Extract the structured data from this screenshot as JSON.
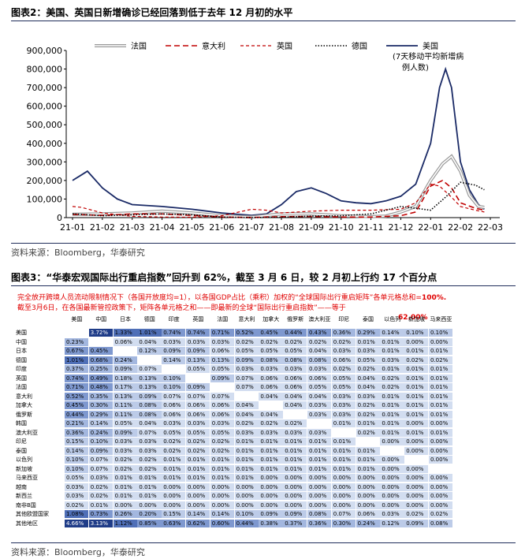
{
  "fig2": {
    "title": "图表2：美国、英国日新增确诊已经回落到低于去年 12 月初的水平",
    "source": "资料来源：Bloomberg，华泰研究"
  },
  "chart_data": {
    "type": "line",
    "yticks": [
      "900,000",
      "800,000",
      "700,000",
      "600,000",
      "500,000",
      "400,000",
      "300,000",
      "200,000",
      "100,000",
      "0"
    ],
    "xticks": [
      "21-01",
      "21-02",
      "21-03",
      "21-04",
      "21-05",
      "21-06",
      "21-07",
      "21-08",
      "21-09",
      "21-10",
      "21-11",
      "21-12",
      "22-01",
      "22-02",
      "22-03"
    ],
    "ylim": [
      0,
      900000
    ],
    "legend": [
      "法国",
      "意大利",
      "英国",
      "德国",
      "美国"
    ],
    "legend_note": [
      "(7天移动平均新增病",
      "例人数)"
    ],
    "series": [
      {
        "name": "美国",
        "color": "#1a2a66",
        "points": [
          [
            0,
            200000
          ],
          [
            0.3,
            230000
          ],
          [
            0.5,
            250000
          ],
          [
            1,
            160000
          ],
          [
            1.5,
            100000
          ],
          [
            2,
            70000
          ],
          [
            3,
            60000
          ],
          [
            4,
            45000
          ],
          [
            5,
            25000
          ],
          [
            6,
            12000
          ],
          [
            6.5,
            20000
          ],
          [
            7,
            70000
          ],
          [
            7.5,
            140000
          ],
          [
            8,
            160000
          ],
          [
            8.5,
            130000
          ],
          [
            9,
            90000
          ],
          [
            9.5,
            80000
          ],
          [
            10,
            75000
          ],
          [
            10.5,
            90000
          ],
          [
            11,
            115000
          ],
          [
            11.5,
            180000
          ],
          [
            12,
            400000
          ],
          [
            12.3,
            700000
          ],
          [
            12.5,
            800000
          ],
          [
            12.7,
            700000
          ],
          [
            13,
            300000
          ],
          [
            13.3,
            150000
          ],
          [
            13.6,
            70000
          ],
          [
            13.8,
            45000
          ]
        ]
      },
      {
        "name": "法国",
        "color": "#999999",
        "points": [
          [
            0,
            18000
          ],
          [
            1,
            20000
          ],
          [
            2,
            25000
          ],
          [
            3,
            35000
          ],
          [
            4,
            25000
          ],
          [
            5,
            10000
          ],
          [
            6,
            3000
          ],
          [
            7,
            20000
          ],
          [
            8,
            20000
          ],
          [
            9,
            10000
          ],
          [
            10,
            5000
          ],
          [
            10.5,
            8000
          ],
          [
            11,
            30000
          ],
          [
            11.5,
            60000
          ],
          [
            12,
            200000
          ],
          [
            12.4,
            290000
          ],
          [
            12.7,
            330000
          ],
          [
            13,
            250000
          ],
          [
            13.3,
            120000
          ],
          [
            13.6,
            60000
          ],
          [
            13.8,
            55000
          ]
        ]
      },
      {
        "name": "意大利",
        "color": "#c00000",
        "points": [
          [
            0,
            18000
          ],
          [
            1,
            12000
          ],
          [
            2,
            20000
          ],
          [
            3,
            20000
          ],
          [
            4,
            12000
          ],
          [
            5,
            3000
          ],
          [
            6,
            1000
          ],
          [
            7,
            5000
          ],
          [
            8,
            6000
          ],
          [
            9,
            3000
          ],
          [
            10,
            3000
          ],
          [
            11,
            10000
          ],
          [
            11.5,
            30000
          ],
          [
            12,
            170000
          ],
          [
            12.4,
            200000
          ],
          [
            12.7,
            160000
          ],
          [
            13,
            80000
          ],
          [
            13.5,
            50000
          ],
          [
            13.8,
            40000
          ]
        ]
      },
      {
        "name": "英国",
        "color": "#c00000",
        "points": [
          [
            0,
            60000
          ],
          [
            0.3,
            55000
          ],
          [
            1,
            25000
          ],
          [
            2,
            7000
          ],
          [
            3,
            3000
          ],
          [
            4,
            2000
          ],
          [
            5,
            10000
          ],
          [
            6,
            45000
          ],
          [
            6.5,
            40000
          ],
          [
            7,
            25000
          ],
          [
            8,
            35000
          ],
          [
            9,
            40000
          ],
          [
            10,
            40000
          ],
          [
            11,
            45000
          ],
          [
            11.5,
            80000
          ],
          [
            12,
            180000
          ],
          [
            12.3,
            170000
          ],
          [
            12.7,
            110000
          ],
          [
            13,
            60000
          ],
          [
            13.5,
            40000
          ],
          [
            13.8,
            30000
          ]
        ]
      },
      {
        "name": "德国",
        "color": "#000000",
        "points": [
          [
            0,
            20000
          ],
          [
            1,
            10000
          ],
          [
            2,
            15000
          ],
          [
            3,
            20000
          ],
          [
            4,
            15000
          ],
          [
            5,
            3000
          ],
          [
            6,
            500
          ],
          [
            7,
            2000
          ],
          [
            8,
            8000
          ],
          [
            9,
            10000
          ],
          [
            10,
            20000
          ],
          [
            10.5,
            40000
          ],
          [
            11,
            60000
          ],
          [
            11.5,
            50000
          ],
          [
            12,
            40000
          ],
          [
            12.5,
            110000
          ],
          [
            13,
            190000
          ],
          [
            13.5,
            175000
          ],
          [
            13.8,
            150000
          ]
        ]
      }
    ]
  },
  "fig3": {
    "title": "图表3：“华泰宏观国际出行重启指数”回升到 62%，截至 3 月 6 日，较 2 月初上行约 17 个百分点",
    "note1_a": "完全放开跨境人员流动限制情况下（各国开放度均=1），以各国GDP占比（乘积）加权的“全球国际出行重启矩阵”各单元格总和=",
    "note1_b": "100%.",
    "note2": "截至3月6日，在各国最新管控政策下，矩阵各单元格之和——即最新的全球“国际出行重启指数”——等于",
    "note3": "62.00%",
    "source": "资料来源：Bloomberg，华泰研究"
  },
  "matrix": {
    "cols": [
      "美国",
      "中国",
      "日本",
      "德国",
      "印度",
      "英国",
      "法国",
      "意大利",
      "加拿大",
      "俄罗斯",
      "澳大利亚",
      "印尼",
      "泰国",
      "以色列",
      "新加坡",
      "马来西亚"
    ],
    "rows": [
      {
        "name": "美国",
        "cells": [
          "",
          "3.72%",
          "1.33%",
          "1.01%",
          "0.74%",
          "0.74%",
          "0.71%",
          "0.52%",
          "0.45%",
          "0.44%",
          "0.43%",
          "0.36%",
          "0.29%",
          "0.14%",
          "0.10%",
          "0.10%"
        ]
      },
      {
        "name": "中国",
        "cells": [
          "0.23%",
          "",
          "0.06%",
          "0.04%",
          "0.03%",
          "0.03%",
          "0.03%",
          "0.02%",
          "0.02%",
          "0.02%",
          "0.02%",
          "0.02%",
          "0.01%",
          "0.01%",
          "0.00%",
          "0.00%"
        ]
      },
      {
        "name": "日本",
        "cells": [
          "0.67%",
          "0.45%",
          "",
          "0.12%",
          "0.09%",
          "0.09%",
          "0.06%",
          "0.05%",
          "0.05%",
          "0.05%",
          "0.04%",
          "0.03%",
          "0.03%",
          "0.01%",
          "0.01%",
          "0.01%"
        ]
      },
      {
        "name": "德国",
        "cells": [
          "1.01%",
          "0.68%",
          "0.24%",
          "",
          "0.14%",
          "0.13%",
          "0.13%",
          "0.09%",
          "0.08%",
          "0.08%",
          "0.08%",
          "0.06%",
          "0.05%",
          "0.03%",
          "0.02%",
          "0.02%"
        ]
      },
      {
        "name": "印度",
        "cells": [
          "0.37%",
          "0.25%",
          "0.09%",
          "0.07%",
          "",
          "0.05%",
          "0.05%",
          "0.03%",
          "0.03%",
          "0.03%",
          "0.03%",
          "0.02%",
          "0.02%",
          "0.01%",
          "0.01%",
          "0.01%"
        ]
      },
      {
        "name": "英国",
        "cells": [
          "0.74%",
          "0.49%",
          "0.18%",
          "0.13%",
          "0.10%",
          "",
          "0.09%",
          "0.07%",
          "0.06%",
          "0.06%",
          "0.06%",
          "0.05%",
          "0.04%",
          "0.02%",
          "0.01%",
          "0.01%"
        ]
      },
      {
        "name": "法国",
        "cells": [
          "0.71%",
          "0.48%",
          "0.17%",
          "0.13%",
          "0.10%",
          "0.09%",
          "",
          "0.07%",
          "0.06%",
          "0.06%",
          "0.05%",
          "0.05%",
          "0.04%",
          "0.02%",
          "0.01%",
          "0.01%"
        ]
      },
      {
        "name": "意大利",
        "cells": [
          "0.52%",
          "0.35%",
          "0.13%",
          "0.09%",
          "0.07%",
          "0.07%",
          "0.07%",
          "",
          "0.04%",
          "0.04%",
          "0.04%",
          "0.03%",
          "0.03%",
          "0.01%",
          "0.01%",
          "0.01%"
        ]
      },
      {
        "name": "加拿大",
        "cells": [
          "0.45%",
          "0.30%",
          "0.11%",
          "0.08%",
          "0.06%",
          "0.06%",
          "0.06%",
          "0.04%",
          "",
          "0.04%",
          "0.03%",
          "0.03%",
          "0.02%",
          "0.01%",
          "0.01%",
          "0.01%"
        ]
      },
      {
        "name": "俄罗斯",
        "cells": [
          "0.44%",
          "0.29%",
          "0.11%",
          "0.08%",
          "0.06%",
          "0.06%",
          "0.06%",
          "0.04%",
          "0.04%",
          "",
          "0.03%",
          "0.03%",
          "0.02%",
          "0.01%",
          "0.01%",
          "0.01%"
        ]
      },
      {
        "name": "韩国",
        "cells": [
          "0.21%",
          "0.14%",
          "0.05%",
          "0.04%",
          "0.03%",
          "0.03%",
          "0.03%",
          "0.02%",
          "0.02%",
          "0.02%",
          "",
          "0.01%",
          "0.01%",
          "0.01%",
          "0.00%",
          "0.00%"
        ]
      },
      {
        "name": "澳大利亚",
        "cells": [
          "0.36%",
          "0.24%",
          "0.09%",
          "0.07%",
          "0.05%",
          "0.05%",
          "0.05%",
          "0.03%",
          "0.03%",
          "0.03%",
          "0.03%",
          "",
          "0.02%",
          "0.01%",
          "0.01%",
          "0.01%"
        ]
      },
      {
        "name": "印尼",
        "cells": [
          "0.15%",
          "0.10%",
          "0.03%",
          "0.03%",
          "0.02%",
          "0.02%",
          "0.02%",
          "0.01%",
          "0.01%",
          "0.01%",
          "0.01%",
          "0.01%",
          "",
          "0.00%",
          "0.00%",
          "0.00%"
        ]
      },
      {
        "name": "泰国",
        "cells": [
          "0.14%",
          "0.09%",
          "0.03%",
          "0.03%",
          "0.02%",
          "0.02%",
          "0.02%",
          "0.01%",
          "0.01%",
          "0.01%",
          "0.01%",
          "0.01%",
          "0.01%",
          "",
          "0.00%",
          "0.00%"
        ]
      },
      {
        "name": "以色列",
        "cells": [
          "0.10%",
          "0.07%",
          "0.02%",
          "0.02%",
          "0.01%",
          "0.01%",
          "0.01%",
          "0.01%",
          "0.01%",
          "0.01%",
          "0.01%",
          "0.01%",
          "0.01%",
          "0.00%",
          "",
          "0.00%"
        ]
      },
      {
        "name": "新加坡",
        "cells": [
          "0.10%",
          "0.07%",
          "0.02%",
          "0.02%",
          "0.01%",
          "0.01%",
          "0.01%",
          "0.01%",
          "0.01%",
          "0.01%",
          "0.01%",
          "0.01%",
          "0.01%",
          "0.00%",
          "0.00%",
          ""
        ]
      },
      {
        "name": "马来西亚",
        "cells": [
          "0.05%",
          "0.03%",
          "0.01%",
          "0.01%",
          "0.01%",
          "0.01%",
          "0.01%",
          "0.01%",
          "0.00%",
          "0.00%",
          "0.00%",
          "0.00%",
          "0.00%",
          "0.00%",
          "0.00%",
          "0.00%"
        ]
      },
      {
        "name": "越南",
        "cells": [
          "0.03%",
          "0.02%",
          "0.01%",
          "0.01%",
          "0.00%",
          "0.00%",
          "0.00%",
          "0.00%",
          "0.00%",
          "0.00%",
          "0.00%",
          "0.00%",
          "0.00%",
          "0.00%",
          "0.00%",
          "0.00%"
        ]
      },
      {
        "name": "新西兰",
        "cells": [
          "0.03%",
          "0.02%",
          "0.01%",
          "0.01%",
          "0.00%",
          "0.00%",
          "0.00%",
          "0.00%",
          "0.00%",
          "0.00%",
          "0.00%",
          "0.00%",
          "0.00%",
          "0.00%",
          "0.00%",
          "0.00%"
        ]
      },
      {
        "name": "南非B国",
        "cells": [
          "0.02%",
          "0.01%",
          "0.00%",
          "0.00%",
          "0.00%",
          "0.00%",
          "0.00%",
          "0.00%",
          "0.00%",
          "0.00%",
          "0.00%",
          "0.00%",
          "0.00%",
          "0.00%",
          "0.00%",
          "0.00%"
        ]
      },
      {
        "name": "其他欧盟国家",
        "cells": [
          "1.08%",
          "0.73%",
          "0.26%",
          "0.20%",
          "0.15%",
          "0.14%",
          "0.14%",
          "0.10%",
          "0.09%",
          "0.09%",
          "0.08%",
          "0.07%",
          "0.06%",
          "0.03%",
          "0.02%",
          "0.02%"
        ]
      },
      {
        "name": "其他地区",
        "cells": [
          "4.66%",
          "3.13%",
          "1.12%",
          "0.85%",
          "0.63%",
          "0.62%",
          "0.60%",
          "0.44%",
          "0.38%",
          "0.37%",
          "0.36%",
          "0.30%",
          "0.24%",
          "0.12%",
          "0.09%",
          "0.08%"
        ]
      }
    ]
  }
}
